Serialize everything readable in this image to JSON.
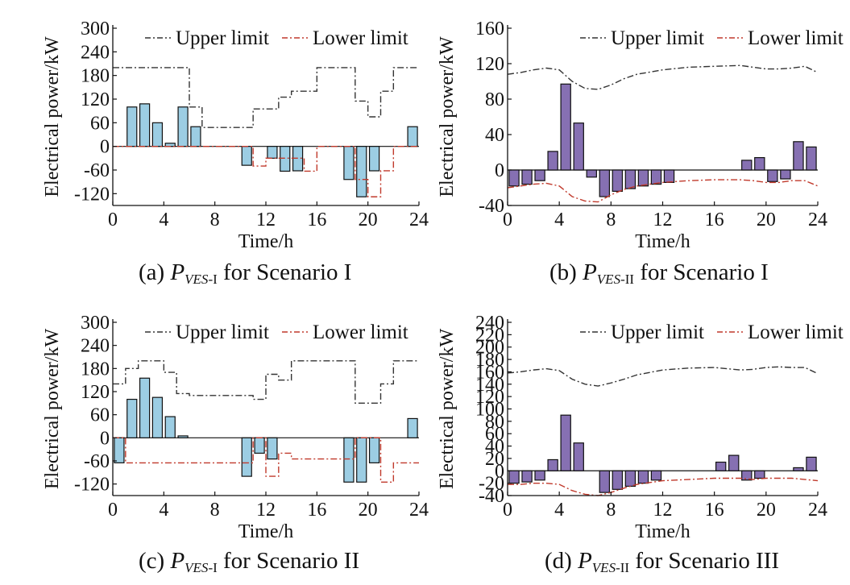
{
  "charts": [
    {
      "caption": {
        "prefix": "(a) ",
        "var": "P",
        "sub_italic": "VES",
        "sub_rest": "-I",
        "suffix": " for Scenario I"
      },
      "bar_color": "#9ccde3",
      "chart_data": {
        "type": "bar",
        "xlabel": "Time/h",
        "ylabel": "Electrical power/kW",
        "xlim": [
          0,
          24
        ],
        "ylim": [
          -150,
          300
        ],
        "xticks": [
          0,
          4,
          8,
          12,
          16,
          20,
          24
        ],
        "yticks": [
          -120,
          -60,
          0,
          60,
          120,
          180,
          240,
          300
        ],
        "legend": [
          "Upper limit",
          "Lower limit"
        ],
        "x": [
          1,
          2,
          3,
          4,
          5,
          6,
          7,
          8,
          9,
          10,
          11,
          12,
          13,
          14,
          15,
          16,
          17,
          18,
          19,
          20,
          21,
          22,
          23,
          24
        ],
        "values": [
          0,
          100,
          108,
          60,
          8,
          100,
          50,
          0,
          0,
          0,
          -48,
          0,
          -30,
          -63,
          -62,
          0,
          0,
          0,
          -84,
          -128,
          -62,
          0,
          0,
          50
        ],
        "series": [
          {
            "name": "Upper limit",
            "x": [
              0,
              6,
              6,
              7,
              7,
              11,
              11,
              13,
              13,
              14,
              14,
              16,
              16,
              19,
              19,
              20,
              20,
              21,
              21,
              22,
              22,
              24
            ],
            "values": [
              200,
              200,
              100,
              100,
              48,
              48,
              95,
              95,
              125,
              125,
              140,
              140,
              200,
              200,
              115,
              115,
              75,
              75,
              140,
              140,
              200,
              200
            ]
          },
          {
            "name": "Lower limit",
            "x": [
              0,
              7,
              7,
              11,
              11,
              12,
              12,
              15,
              15,
              16,
              16,
              19,
              19,
              20,
              20,
              21,
              21,
              22,
              22,
              24
            ],
            "values": [
              0,
              0,
              0,
              0,
              -50,
              -50,
              -30,
              -30,
              -63,
              -63,
              0,
              0,
              -84,
              -84,
              -128,
              -128,
              -62,
              -62,
              0,
              0
            ]
          }
        ]
      }
    },
    {
      "caption": {
        "prefix": "(b) ",
        "var": "P",
        "sub_italic": "VES",
        "sub_rest": "-II",
        "suffix": " for Scenario I"
      },
      "bar_color": "#8670b2",
      "chart_data": {
        "type": "bar",
        "xlabel": "Time/h",
        "ylabel": "Electrical power/kW",
        "xlim": [
          0,
          24
        ],
        "ylim": [
          -40,
          160
        ],
        "xticks": [
          0,
          4,
          8,
          12,
          16,
          20,
          24
        ],
        "yticks": [
          -40,
          0,
          40,
          80,
          120,
          160
        ],
        "legend": [
          "Upper limit",
          "Lower limit"
        ],
        "x": [
          1,
          2,
          3,
          4,
          5,
          6,
          7,
          8,
          9,
          10,
          11,
          12,
          13,
          14,
          15,
          16,
          17,
          18,
          19,
          20,
          21,
          22,
          23,
          24
        ],
        "values": [
          -18,
          -16,
          -12,
          21,
          97,
          53,
          -8,
          -30,
          -24,
          -21,
          -18,
          -16,
          -14,
          0,
          0,
          0,
          0,
          0,
          11,
          14,
          -13,
          -10,
          32,
          26
        ],
        "series": [
          {
            "name": "Upper limit",
            "x": [
              0,
              1,
              2,
              3,
              4,
              5,
              6,
              7,
              8,
              9,
              10,
              12,
              14,
              16,
              18,
              19,
              20,
              21,
              22,
              23,
              24
            ],
            "values": [
              108,
              110,
              113,
              115,
              113,
              100,
              92,
              91,
              96,
              103,
              108,
              113,
              116,
              117,
              118,
              116,
              114,
              114,
              115,
              117,
              110
            ]
          },
          {
            "name": "Lower limit",
            "x": [
              0,
              1,
              2,
              3,
              4,
              5,
              6,
              7,
              8,
              9,
              10,
              12,
              14,
              16,
              18,
              19,
              20,
              21,
              22,
              23,
              24
            ],
            "values": [
              -20,
              -18,
              -16,
              -15,
              -18,
              -30,
              -35,
              -36,
              -28,
              -22,
              -18,
              -14,
              -12,
              -11,
              -11,
              -12,
              -14,
              -14,
              -12,
              -12,
              -18
            ]
          }
        ]
      }
    },
    {
      "caption": {
        "prefix": "(c) ",
        "var": "P",
        "sub_italic": "VES",
        "sub_rest": "-I",
        "suffix": " for Scenario II"
      },
      "bar_color": "#9ccde3",
      "chart_data": {
        "type": "bar",
        "xlabel": "Time/h",
        "ylabel": "Electrical power/kW",
        "xlim": [
          0,
          24
        ],
        "ylim": [
          -150,
          300
        ],
        "xticks": [
          0,
          4,
          8,
          12,
          16,
          20,
          24
        ],
        "yticks": [
          -120,
          -60,
          0,
          60,
          120,
          180,
          240,
          300
        ],
        "legend": [
          "Upper limit",
          "Lower limit"
        ],
        "x": [
          1,
          2,
          3,
          4,
          5,
          6,
          7,
          8,
          9,
          10,
          11,
          12,
          13,
          14,
          15,
          16,
          17,
          18,
          19,
          20,
          21,
          22,
          23,
          24
        ],
        "values": [
          -65,
          100,
          155,
          105,
          55,
          5,
          0,
          0,
          0,
          0,
          -100,
          -40,
          -55,
          0,
          0,
          0,
          0,
          0,
          -115,
          -115,
          -65,
          0,
          0,
          50
        ],
        "series": [
          {
            "name": "Upper limit",
            "x": [
              0,
              1,
              1,
              2,
              2,
              4,
              4,
              5,
              5,
              6,
              6,
              11,
              11,
              12,
              12,
              13,
              13,
              14,
              14,
              19,
              19,
              21,
              21,
              22,
              22,
              24
            ],
            "values": [
              140,
              140,
              180,
              180,
              200,
              200,
              170,
              170,
              115,
              115,
              110,
              110,
              100,
              100,
              165,
              165,
              150,
              150,
              200,
              200,
              90,
              90,
              140,
              140,
              200,
              200
            ]
          },
          {
            "name": "Lower limit",
            "x": [
              0,
              1,
              1,
              11,
              11,
              12,
              12,
              13,
              13,
              14,
              14,
              19,
              19,
              21,
              21,
              22,
              22,
              24
            ],
            "values": [
              0,
              0,
              -65,
              -65,
              0,
              0,
              -100,
              -100,
              -40,
              -40,
              -55,
              -55,
              0,
              0,
              -115,
              -115,
              -65,
              -65
            ]
          }
        ]
      }
    },
    {
      "caption": {
        "prefix": "(d) ",
        "var": "P",
        "sub_italic": "VES",
        "sub_rest": "-II",
        "suffix": " for Scenario III"
      },
      "bar_color": "#8670b2",
      "chart_data": {
        "type": "bar",
        "xlabel": "Time/h",
        "ylabel": "Electrical power/kW",
        "xlim": [
          0,
          24
        ],
        "ylim": [
          -40,
          240
        ],
        "xticks": [
          0,
          4,
          8,
          12,
          16,
          20,
          24
        ],
        "yticks": [
          -40,
          -20,
          0,
          20,
          40,
          60,
          80,
          100,
          120,
          140,
          160,
          180,
          200,
          220,
          240
        ],
        "legend": [
          "Upper limit",
          "Lower limit"
        ],
        "x": [
          1,
          2,
          3,
          4,
          5,
          6,
          7,
          8,
          9,
          10,
          11,
          12,
          13,
          14,
          15,
          16,
          17,
          18,
          19,
          20,
          21,
          22,
          23,
          24
        ],
        "values": [
          -20,
          -18,
          -15,
          18,
          90,
          45,
          0,
          -35,
          -30,
          -25,
          -20,
          -15,
          0,
          0,
          0,
          0,
          14,
          25,
          -15,
          -12,
          0,
          0,
          5,
          22
        ],
        "series": [
          {
            "name": "Upper limit",
            "x": [
              0,
              1,
              2,
              3,
              4,
              5,
              6,
              7,
              8,
              9,
              10,
              12,
              14,
              16,
              18,
              19,
              20,
              21,
              22,
              23,
              24
            ],
            "values": [
              158,
              160,
              163,
              165,
              162,
              148,
              140,
              137,
              142,
              148,
              155,
              163,
              166,
              167,
              163,
              164,
              167,
              168,
              167,
              167,
              157
            ]
          },
          {
            "name": "Lower limit",
            "x": [
              0,
              1,
              2,
              3,
              4,
              5,
              6,
              7,
              8,
              9,
              10,
              12,
              14,
              16,
              18,
              19,
              20,
              21,
              22,
              23,
              24
            ],
            "values": [
              -22,
              -22,
              -20,
              -20,
              -22,
              -32,
              -38,
              -40,
              -35,
              -28,
              -22,
              -16,
              -14,
              -12,
              -12,
              -14,
              -12,
              -12,
              -12,
              -14,
              -16
            ]
          }
        ]
      }
    }
  ]
}
